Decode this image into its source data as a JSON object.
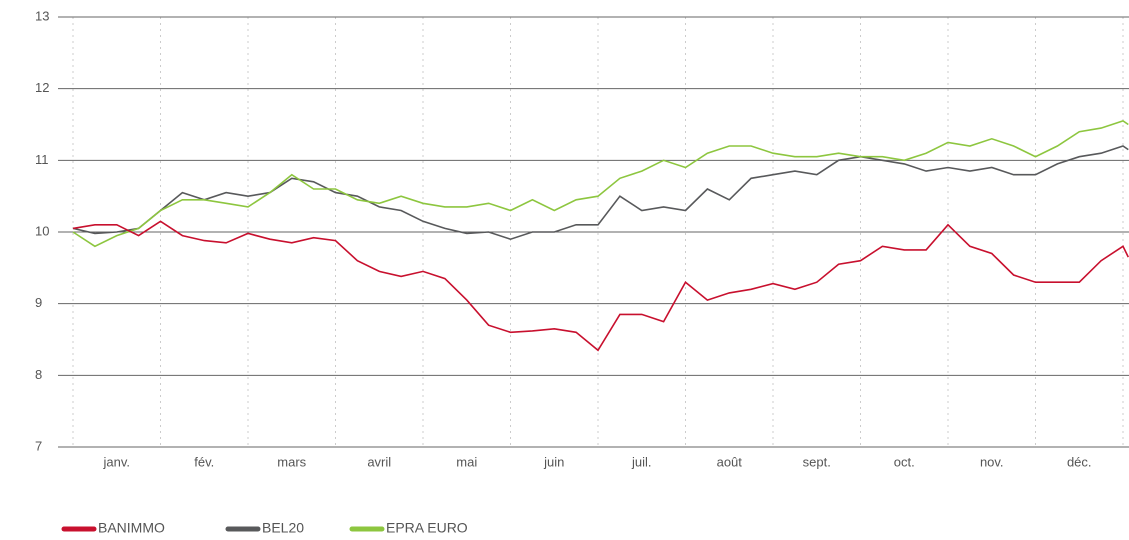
{
  "chart_data": {
    "type": "line",
    "x": [
      0,
      0.25,
      0.5,
      0.75,
      1,
      1.25,
      1.5,
      1.75,
      2,
      2.25,
      2.5,
      2.75,
      3,
      3.25,
      3.5,
      3.75,
      4,
      4.25,
      4.5,
      4.75,
      5,
      5.25,
      5.5,
      5.75,
      6,
      6.25,
      6.5,
      6.75,
      7,
      7.25,
      7.5,
      7.75,
      8,
      8.25,
      8.5,
      8.75,
      9,
      9.25,
      9.5,
      9.75,
      10,
      10.25,
      10.5,
      10.75,
      11,
      11.25,
      11.5,
      11.75,
      12,
      12.06
    ],
    "xlim": [
      0,
      12
    ],
    "xticks": [
      {
        "value": 0.5,
        "label": "janv."
      },
      {
        "value": 1.5,
        "label": "fév."
      },
      {
        "value": 2.5,
        "label": "mars"
      },
      {
        "value": 3.5,
        "label": "avril"
      },
      {
        "value": 4.5,
        "label": "mai"
      },
      {
        "value": 5.5,
        "label": "juin"
      },
      {
        "value": 6.5,
        "label": "juil."
      },
      {
        "value": 7.5,
        "label": "août"
      },
      {
        "value": 8.5,
        "label": "sept."
      },
      {
        "value": 9.5,
        "label": "oct."
      },
      {
        "value": 10.5,
        "label": "nov."
      },
      {
        "value": 11.5,
        "label": "déc."
      }
    ],
    "ylim": [
      7,
      13
    ],
    "yticks": [
      7,
      8,
      9,
      10,
      11,
      12,
      13
    ],
    "grid": true,
    "series": [
      {
        "name": "BANIMMO",
        "color": "#c8102e",
        "values": [
          10.05,
          10.1,
          10.1,
          9.95,
          10.15,
          9.95,
          9.88,
          9.85,
          9.98,
          9.9,
          9.85,
          9.92,
          9.88,
          9.6,
          9.45,
          9.38,
          9.45,
          9.35,
          9.05,
          8.7,
          8.6,
          8.62,
          8.65,
          8.6,
          8.35,
          8.85,
          8.85,
          8.75,
          9.3,
          9.05,
          9.15,
          9.2,
          9.28,
          9.2,
          9.3,
          9.55,
          9.6,
          9.8,
          9.75,
          9.75,
          10.1,
          9.8,
          9.7,
          9.4,
          9.3,
          9.3,
          9.3,
          9.6,
          9.8,
          9.65
        ]
      },
      {
        "name": "BEL20",
        "color": "#58595b",
        "values": [
          10.05,
          9.98,
          10.0,
          10.05,
          10.3,
          10.55,
          10.45,
          10.55,
          10.5,
          10.55,
          10.75,
          10.7,
          10.55,
          10.5,
          10.35,
          10.3,
          10.15,
          10.05,
          9.98,
          10.0,
          9.9,
          10.0,
          10.0,
          10.1,
          10.1,
          10.5,
          10.3,
          10.35,
          10.3,
          10.6,
          10.45,
          10.75,
          10.8,
          10.85,
          10.8,
          11.0,
          11.05,
          11.0,
          10.95,
          10.85,
          10.9,
          10.85,
          10.9,
          10.8,
          10.8,
          10.95,
          11.05,
          11.1,
          11.2,
          11.15
        ]
      },
      {
        "name": "EPRA EURO",
        "color": "#8dc63f",
        "values": [
          10.0,
          9.8,
          9.95,
          10.05,
          10.3,
          10.45,
          10.45,
          10.4,
          10.35,
          10.55,
          10.8,
          10.6,
          10.6,
          10.45,
          10.4,
          10.5,
          10.4,
          10.35,
          10.35,
          10.4,
          10.3,
          10.45,
          10.3,
          10.45,
          10.5,
          10.75,
          10.85,
          11.0,
          10.9,
          11.1,
          11.2,
          11.2,
          11.1,
          11.05,
          11.05,
          11.1,
          11.05,
          11.05,
          11.0,
          11.1,
          11.25,
          11.2,
          11.3,
          11.2,
          11.05,
          11.2,
          11.4,
          11.45,
          11.55,
          11.5
        ]
      }
    ]
  }
}
